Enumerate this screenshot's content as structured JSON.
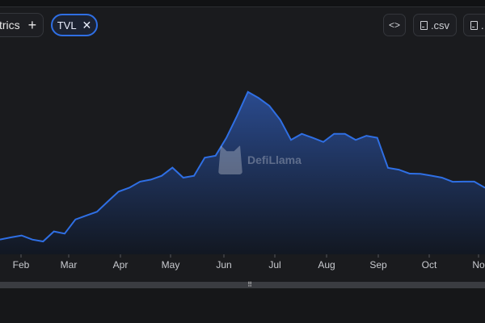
{
  "toolbar": {
    "metrics_label": "trics",
    "add_icon": "plus-icon",
    "selected_metric": "TVL",
    "remove_icon": "close-icon",
    "embed_icon": "code-icon",
    "csv_label": ".csv",
    "png_label": "."
  },
  "watermark": {
    "text": "DefiLlama"
  },
  "chart_data": {
    "type": "area",
    "color": "#2f6fe4",
    "fill_top": "#2b4d94",
    "fill_bottom": "#111722",
    "x_tick_labels": [
      "Feb",
      "Mar",
      "Apr",
      "May",
      "Jun",
      "Jul",
      "Aug",
      "Sep",
      "Oct",
      "No"
    ],
    "grid": false,
    "series": [
      {
        "values_relative": [
          0.08,
          0.08,
          0.09,
          0.08,
          0.06,
          0.11,
          0.11,
          0.17,
          0.19,
          0.22,
          0.26,
          0.31,
          0.34,
          0.36,
          0.37,
          0.4,
          0.43,
          0.38,
          0.4,
          0.48,
          0.49,
          0.59,
          0.69,
          0.81,
          0.79,
          0.74,
          0.67,
          0.58,
          0.6,
          0.58,
          0.57,
          0.6,
          0.6,
          0.58,
          0.59,
          0.58,
          0.44,
          0.42,
          0.4,
          0.41,
          0.39,
          0.38,
          0.37,
          0.36,
          0.36,
          0.34
        ]
      }
    ]
  }
}
